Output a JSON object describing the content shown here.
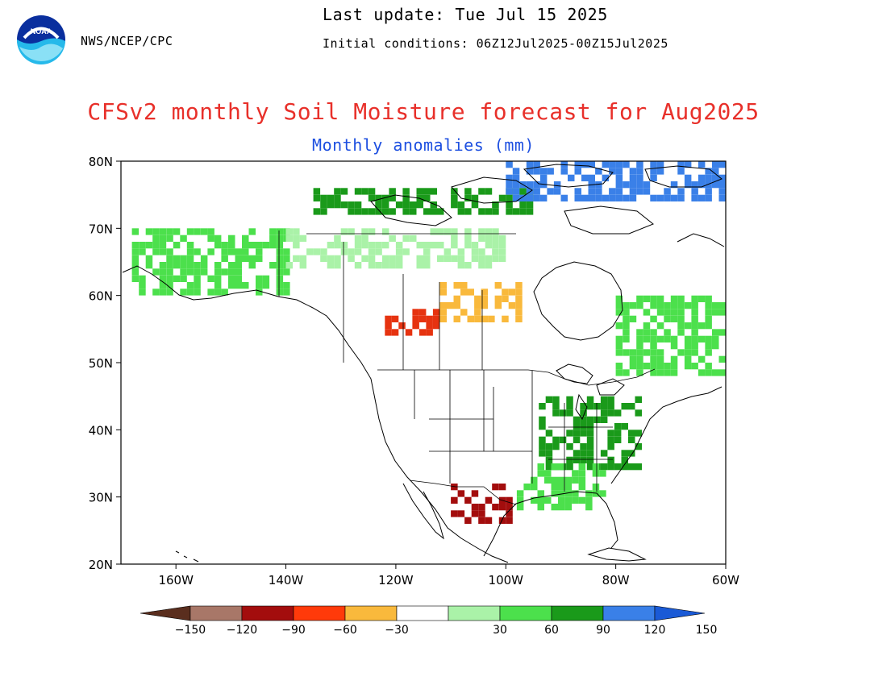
{
  "header": {
    "agency": "NWS/NCEP/CPC",
    "last_update": "Last update: Tue Jul 15 2025",
    "initial_conditions": "Initial conditions: 06Z12Jul2025-00Z15Jul2025",
    "logo_text": "NOAA"
  },
  "title": "CFSv2 monthly Soil Moisture forecast for Aug2025",
  "subtitle": "Monthly anomalies (mm)",
  "map": {
    "lat_ticks": [
      {
        "value": 80,
        "label": "80N"
      },
      {
        "value": 70,
        "label": "70N"
      },
      {
        "value": 60,
        "label": "60N"
      },
      {
        "value": 50,
        "label": "50N"
      },
      {
        "value": 40,
        "label": "40N"
      },
      {
        "value": 30,
        "label": "30N"
      },
      {
        "value": 20,
        "label": "20N"
      }
    ],
    "lon_ticks": [
      {
        "value": -160,
        "label": "160W"
      },
      {
        "value": -140,
        "label": "140W"
      },
      {
        "value": -120,
        "label": "120W"
      },
      {
        "value": -100,
        "label": "100W"
      },
      {
        "value": -80,
        "label": "80W"
      },
      {
        "value": -60,
        "label": "60W"
      }
    ],
    "lon_range": [
      -170,
      -60
    ],
    "lat_range": [
      20,
      80
    ],
    "anomaly_regions": [
      {
        "name": "Canadian Arctic islands",
        "color": "#1a9a1a",
        "lons": [
          -135,
          -95
        ],
        "lats": [
          72,
          76
        ]
      },
      {
        "name": "Arctic blue NE",
        "color": "#3a80e8",
        "lons": [
          -100,
          -60
        ],
        "lats": [
          74,
          80
        ]
      },
      {
        "name": "Alaska mixed",
        "color": "#4ce04c",
        "lons": [
          -168,
          -140
        ],
        "lats": [
          60,
          70
        ]
      },
      {
        "name": "Yukon-NWT green",
        "color": "#aaf2a8",
        "lons": [
          -140,
          -100
        ],
        "lats": [
          64,
          70
        ]
      },
      {
        "name": "Alberta dry",
        "color": "#e63310",
        "lons": [
          -122,
          -112
        ],
        "lats": [
          54,
          58
        ]
      },
      {
        "name": "Prairies orange",
        "color": "#f9b93c",
        "lons": [
          -112,
          -98
        ],
        "lats": [
          56,
          62
        ]
      },
      {
        "name": "US southwest dry",
        "color": "#a30d0d",
        "lons": [
          -110,
          -99
        ],
        "lats": [
          26,
          32
        ]
      },
      {
        "name": "Eastern US wet",
        "color": "#1a9a1a",
        "lons": [
          -94,
          -76
        ],
        "lats": [
          34,
          45
        ]
      },
      {
        "name": "Gulf coast wet",
        "color": "#4ce04c",
        "lons": [
          -98,
          -82
        ],
        "lats": [
          28,
          35
        ]
      },
      {
        "name": "Quebec-Labrador",
        "color": "#4ce04c",
        "lons": [
          -80,
          -60
        ],
        "lats": [
          48,
          60
        ]
      }
    ]
  },
  "colorbar": {
    "colors": [
      "#5a2e1e",
      "#a87768",
      "#a30d0d",
      "#ff3a0a",
      "#f9b93c",
      "#ffffff",
      "#aaf2a8",
      "#4ce04c",
      "#1a9a1a",
      "#3a80e8",
      "#1a5ad6"
    ],
    "labels": [
      "−150",
      "−120",
      "−90",
      "−60",
      "−30",
      "30",
      "60",
      "90",
      "120",
      "150"
    ]
  }
}
